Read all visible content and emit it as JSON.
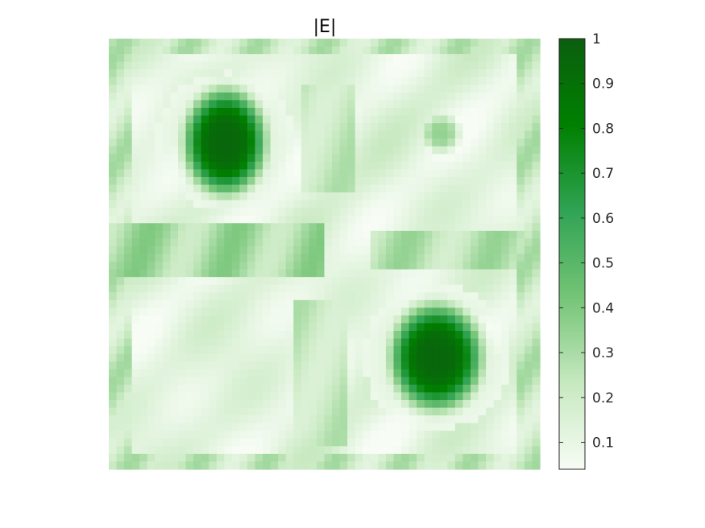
{
  "chart_data": {
    "type": "heatmap",
    "title": "|E|",
    "xlabel": "",
    "ylabel": "",
    "colorbar": {
      "range": [
        0.04,
        1
      ],
      "ticks": [
        0.1,
        0.2,
        0.3,
        0.4,
        0.5,
        0.6,
        0.7,
        0.8,
        0.9,
        1
      ],
      "tick_labels": [
        "0.1",
        "0.2",
        "0.3",
        "0.4",
        "0.5",
        "0.6",
        "0.7",
        "0.8",
        "0.9",
        "1"
      ],
      "colormap": [
        "#f7fcf5",
        "#c7e9c0",
        "#74c476",
        "#31a354",
        "#008000",
        "#0b5e0f"
      ]
    },
    "axes_visible": false,
    "grid": false,
    "features": {
      "peaks": [
        {
          "x": 0.27,
          "y": 0.24,
          "rx": 0.085,
          "ry": 0.11,
          "value": 0.95
        },
        {
          "x": 0.76,
          "y": 0.74,
          "rx": 0.095,
          "ry": 0.11,
          "value": 0.95
        },
        {
          "x": 0.77,
          "y": 0.22,
          "rx": 0.04,
          "ry": 0.04,
          "value": 0.35
        }
      ],
      "rings": [
        {
          "x": 0.27,
          "y": 0.24,
          "r": 0.16,
          "value": 0.08
        },
        {
          "x": 0.76,
          "y": 0.74,
          "r": 0.17,
          "value": 0.08
        }
      ],
      "blocks": [
        {
          "x0": 0.0,
          "x1": 0.5,
          "y0": 0.42,
          "y1": 0.56,
          "value": 0.4
        },
        {
          "x0": 0.6,
          "x1": 1.0,
          "y0": 0.45,
          "y1": 0.54,
          "value": 0.35
        },
        {
          "x0": 0.45,
          "x1": 0.58,
          "y0": 0.1,
          "y1": 0.35,
          "value": 0.3
        },
        {
          "x0": 0.42,
          "x1": 0.55,
          "y0": 0.6,
          "y1": 0.95,
          "value": 0.3
        }
      ]
    }
  }
}
